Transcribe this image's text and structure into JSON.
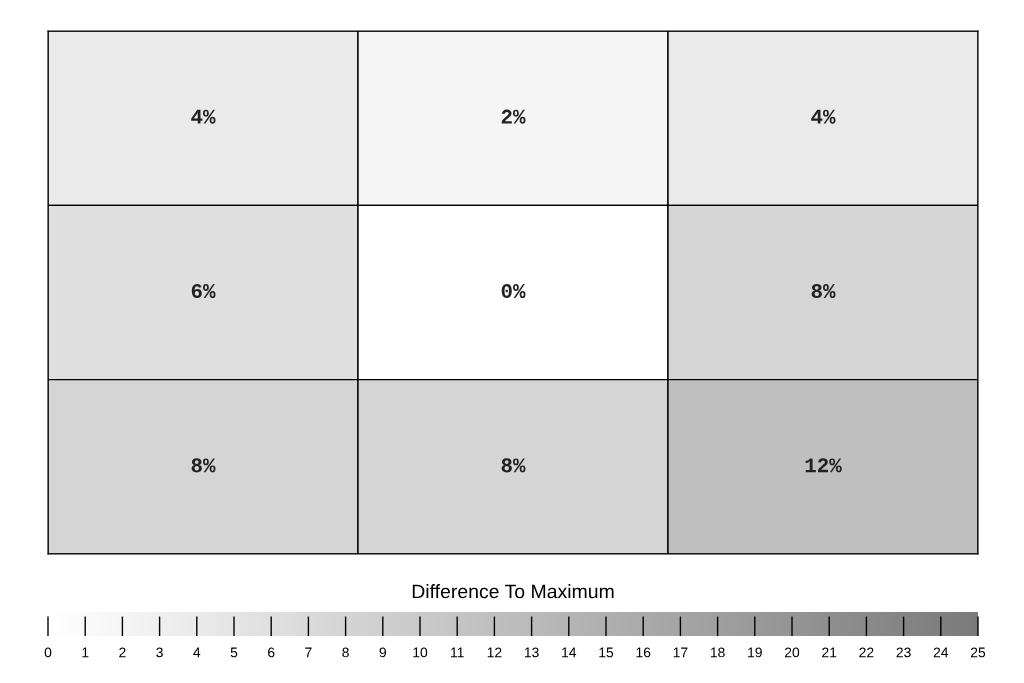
{
  "chart_data": {
    "type": "heatmap",
    "categories": [
      null,
      null,
      null
    ],
    "y_categories": [
      null,
      null,
      null
    ],
    "cells": [
      [
        4,
        2,
        4
      ],
      [
        6,
        0,
        8
      ],
      [
        8,
        8,
        12
      ]
    ],
    "cell_labels": [
      [
        "4%",
        "2%",
        "4%"
      ],
      [
        "6%",
        "0%",
        "8%"
      ],
      [
        "8%",
        "8%",
        "12%"
      ]
    ],
    "clabel": "Difference To Maximum",
    "clim": [
      0,
      25
    ],
    "cticks": [
      0,
      1,
      2,
      3,
      4,
      5,
      6,
      7,
      8,
      9,
      10,
      11,
      12,
      13,
      14,
      15,
      16,
      17,
      18,
      19,
      20,
      21,
      22,
      23,
      24,
      25
    ],
    "colors": [
      "#ffffff",
      "#7a7a7a"
    ]
  }
}
